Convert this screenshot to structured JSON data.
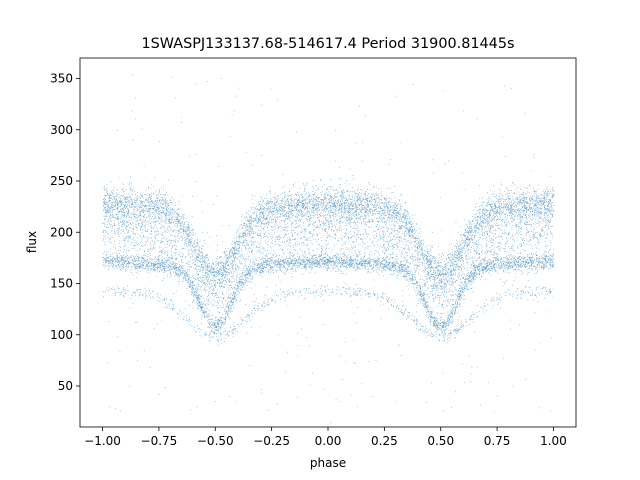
{
  "chart_data": {
    "type": "scatter",
    "title": "1SWASPJ133137.68-514617.4 Period 31900.81445s",
    "xlabel": "phase",
    "ylabel": "flux",
    "xlim": [
      -1.1,
      1.1
    ],
    "ylim": [
      10,
      370
    ],
    "xticks": [
      -1.0,
      -0.75,
      -0.5,
      -0.25,
      0.0,
      0.25,
      0.5,
      0.75,
      1.0
    ],
    "xtick_labels": [
      "−1.00",
      "−0.75",
      "−0.50",
      "−0.25",
      "0.00",
      "0.25",
      "0.50",
      "0.75",
      "1.00"
    ],
    "yticks": [
      50,
      100,
      150,
      200,
      250,
      300,
      350
    ],
    "ytick_labels": [
      "50",
      "100",
      "150",
      "200",
      "250",
      "300",
      "350"
    ],
    "grid": false,
    "point_color": "#1f77b4",
    "series": [
      {
        "branches": [
          {
            "max": 228,
            "min": 160,
            "eclipse_width": 0.09,
            "spread": 8,
            "weight": 0.33
          },
          {
            "max": 205,
            "min": 145,
            "eclipse_width": 0.11,
            "spread": 16,
            "weight": 0.25
          },
          {
            "max": 172,
            "min": 108,
            "eclipse_width": 0.07,
            "spread": 4,
            "weight": 0.26
          },
          {
            "max": 143,
            "min": 98,
            "eclipse_width": 0.12,
            "spread": 3,
            "weight": 0.05
          }
        ],
        "point_count": 14000,
        "outlier_range": [
          25,
          355
        ]
      }
    ]
  }
}
